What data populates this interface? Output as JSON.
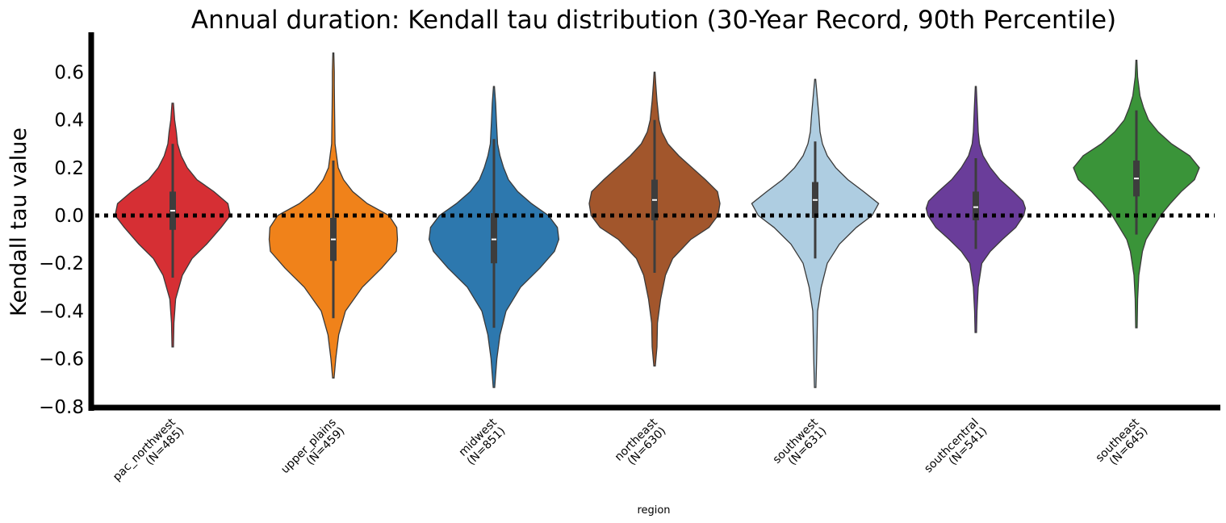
{
  "chart_data": {
    "type": "violin",
    "title": "Annual duration: Kendall tau distribution (30-Year Record, 90th Percentile)",
    "xlabel": "region",
    "ylabel": "Kendall tau value",
    "ylim": [
      -0.8,
      0.75
    ],
    "yticks": [
      0.6,
      0.4,
      0.2,
      0.0,
      -0.2,
      -0.4,
      -0.6,
      -0.8
    ],
    "ytick_labels": [
      "0.6",
      "0.4",
      "0.2",
      "0.0",
      "−0.2",
      "−0.4",
      "−0.6",
      "−0.8"
    ],
    "reference_line": {
      "y": 0.0,
      "style": "dotted",
      "color": "#000000"
    },
    "grid": false,
    "categories": [
      {
        "name": "pac_northwest",
        "n_label": "(N=485)",
        "color": "#d62f34",
        "median": 0.02,
        "q1": -0.06,
        "q3": 0.1,
        "whisker_low": -0.26,
        "whisker_high": 0.3,
        "profile": [
          [
            -0.55,
            0.003
          ],
          [
            -0.45,
            0.005
          ],
          [
            -0.35,
            0.012
          ],
          [
            -0.25,
            0.04
          ],
          [
            -0.18,
            0.08
          ],
          [
            -0.12,
            0.14
          ],
          [
            -0.05,
            0.2
          ],
          [
            0.0,
            0.238
          ],
          [
            0.05,
            0.228
          ],
          [
            0.1,
            0.17
          ],
          [
            0.15,
            0.1
          ],
          [
            0.2,
            0.06
          ],
          [
            0.25,
            0.035
          ],
          [
            0.3,
            0.02
          ],
          [
            0.35,
            0.015
          ],
          [
            0.4,
            0.008
          ],
          [
            0.47,
            0.003
          ]
        ]
      },
      {
        "name": "upper_plains",
        "n_label": "(N=459)",
        "color": "#f0821a",
        "median": -0.1,
        "q1": -0.19,
        "q3": -0.01,
        "whisker_low": -0.43,
        "whisker_high": 0.23,
        "profile": [
          [
            -0.68,
            0.003
          ],
          [
            -0.6,
            0.01
          ],
          [
            -0.5,
            0.022
          ],
          [
            -0.4,
            0.05
          ],
          [
            -0.3,
            0.12
          ],
          [
            -0.22,
            0.2
          ],
          [
            -0.15,
            0.26
          ],
          [
            -0.1,
            0.265
          ],
          [
            -0.05,
            0.262
          ],
          [
            0.0,
            0.23
          ],
          [
            0.05,
            0.14
          ],
          [
            0.1,
            0.08
          ],
          [
            0.15,
            0.042
          ],
          [
            0.2,
            0.02
          ],
          [
            0.3,
            0.007
          ],
          [
            0.45,
            0.005
          ],
          [
            0.55,
            0.004
          ],
          [
            0.6,
            0.004
          ],
          [
            0.68,
            0.002
          ]
        ]
      },
      {
        "name": "midwest",
        "n_label": "(N=851)",
        "color": "#2d78ae",
        "median": -0.1,
        "q1": -0.2,
        "q3": 0.01,
        "whisker_low": -0.47,
        "whisker_high": 0.32,
        "profile": [
          [
            -0.72,
            0.003
          ],
          [
            -0.6,
            0.012
          ],
          [
            -0.5,
            0.025
          ],
          [
            -0.4,
            0.05
          ],
          [
            -0.3,
            0.11
          ],
          [
            -0.22,
            0.19
          ],
          [
            -0.15,
            0.25
          ],
          [
            -0.1,
            0.268
          ],
          [
            -0.05,
            0.262
          ],
          [
            0.0,
            0.225
          ],
          [
            0.05,
            0.155
          ],
          [
            0.1,
            0.098
          ],
          [
            0.15,
            0.06
          ],
          [
            0.2,
            0.04
          ],
          [
            0.25,
            0.025
          ],
          [
            0.3,
            0.015
          ],
          [
            0.4,
            0.01
          ],
          [
            0.47,
            0.007
          ],
          [
            0.54,
            0.002
          ]
        ]
      },
      {
        "name": "northeast",
        "n_label": "(N=630)",
        "color": "#a2562c",
        "median": 0.065,
        "q1": -0.02,
        "q3": 0.15,
        "whisker_low": -0.24,
        "whisker_high": 0.4,
        "profile": [
          [
            -0.63,
            0.003
          ],
          [
            -0.55,
            0.01
          ],
          [
            -0.45,
            0.012
          ],
          [
            -0.35,
            0.025
          ],
          [
            -0.25,
            0.045
          ],
          [
            -0.18,
            0.075
          ],
          [
            -0.1,
            0.15
          ],
          [
            -0.05,
            0.225
          ],
          [
            0.0,
            0.262
          ],
          [
            0.05,
            0.27
          ],
          [
            0.1,
            0.26
          ],
          [
            0.15,
            0.21
          ],
          [
            0.2,
            0.155
          ],
          [
            0.25,
            0.1
          ],
          [
            0.3,
            0.055
          ],
          [
            0.35,
            0.03
          ],
          [
            0.4,
            0.018
          ],
          [
            0.48,
            0.01
          ],
          [
            0.55,
            0.005
          ],
          [
            0.6,
            0.002
          ]
        ]
      },
      {
        "name": "southwest",
        "n_label": "(N=631)",
        "color": "#aecde1",
        "median": 0.065,
        "q1": -0.01,
        "q3": 0.14,
        "whisker_low": -0.18,
        "whisker_high": 0.31,
        "profile": [
          [
            -0.72,
            0.003
          ],
          [
            -0.6,
            0.006
          ],
          [
            -0.5,
            0.008
          ],
          [
            -0.4,
            0.01
          ],
          [
            -0.3,
            0.025
          ],
          [
            -0.2,
            0.05
          ],
          [
            -0.12,
            0.1
          ],
          [
            -0.05,
            0.17
          ],
          [
            0.0,
            0.235
          ],
          [
            0.05,
            0.262
          ],
          [
            0.1,
            0.2
          ],
          [
            0.15,
            0.135
          ],
          [
            0.2,
            0.085
          ],
          [
            0.25,
            0.05
          ],
          [
            0.3,
            0.03
          ],
          [
            0.35,
            0.02
          ],
          [
            0.42,
            0.015
          ],
          [
            0.5,
            0.008
          ],
          [
            0.57,
            0.002
          ]
        ]
      },
      {
        "name": "southcentral",
        "n_label": "(N=541)",
        "color": "#6a3d9a",
        "median": 0.035,
        "q1": -0.02,
        "q3": 0.1,
        "whisker_low": -0.14,
        "whisker_high": 0.24,
        "profile": [
          [
            -0.49,
            0.003
          ],
          [
            -0.4,
            0.005
          ],
          [
            -0.3,
            0.01
          ],
          [
            -0.2,
            0.025
          ],
          [
            -0.15,
            0.06
          ],
          [
            -0.1,
            0.11
          ],
          [
            -0.05,
            0.165
          ],
          [
            0.0,
            0.198
          ],
          [
            0.03,
            0.205
          ],
          [
            0.06,
            0.195
          ],
          [
            0.1,
            0.155
          ],
          [
            0.15,
            0.1
          ],
          [
            0.2,
            0.06
          ],
          [
            0.25,
            0.03
          ],
          [
            0.3,
            0.015
          ],
          [
            0.35,
            0.01
          ],
          [
            0.45,
            0.006
          ],
          [
            0.54,
            0.002
          ]
        ]
      },
      {
        "name": "southeast",
        "n_label": "(N=645)",
        "color": "#3a9439",
        "median": 0.155,
        "q1": 0.08,
        "q3": 0.23,
        "whisker_low": -0.08,
        "whisker_high": 0.44,
        "profile": [
          [
            -0.47,
            0.003
          ],
          [
            -0.35,
            0.005
          ],
          [
            -0.25,
            0.01
          ],
          [
            -0.15,
            0.025
          ],
          [
            -0.1,
            0.04
          ],
          [
            -0.05,
            0.07
          ],
          [
            0.0,
            0.1
          ],
          [
            0.05,
            0.14
          ],
          [
            0.1,
            0.185
          ],
          [
            0.15,
            0.24
          ],
          [
            0.2,
            0.26
          ],
          [
            0.25,
            0.22
          ],
          [
            0.3,
            0.145
          ],
          [
            0.35,
            0.09
          ],
          [
            0.4,
            0.05
          ],
          [
            0.45,
            0.03
          ],
          [
            0.5,
            0.015
          ],
          [
            0.58,
            0.005
          ],
          [
            0.65,
            0.002
          ]
        ]
      }
    ]
  }
}
